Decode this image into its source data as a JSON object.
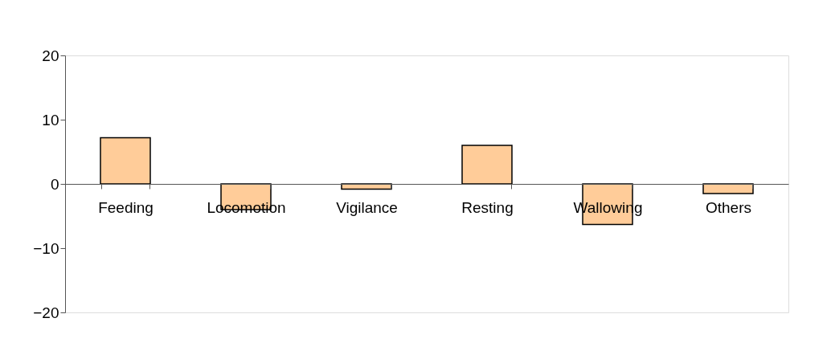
{
  "chart_data": {
    "type": "bar",
    "categories": [
      "Feeding",
      "Locomotion",
      "Vigilance",
      "Resting",
      "Wallowing",
      "Others"
    ],
    "values": [
      7.2,
      -4.0,
      -0.8,
      6.0,
      -6.3,
      -1.5
    ],
    "color": "#ffcc99",
    "ylim": [
      -20,
      20
    ],
    "yticks": [
      -20,
      -10,
      0,
      10,
      20
    ],
    "grid": false
  }
}
